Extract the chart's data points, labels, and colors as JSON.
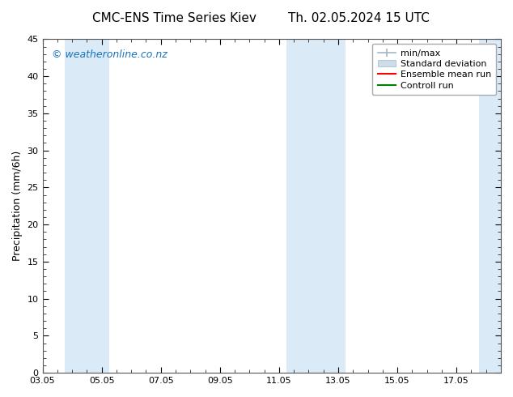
{
  "title_left": "CMC-ENS Time Series Kiev",
  "title_right": "Th. 02.05.2024 15 UTC",
  "ylabel": "Precipitation (mm/6h)",
  "ylim": [
    0,
    45
  ],
  "yticks": [
    0,
    5,
    10,
    15,
    20,
    25,
    30,
    35,
    40,
    45
  ],
  "xtick_labels": [
    "03.05",
    "05.05",
    "07.05",
    "09.05",
    "11.05",
    "13.05",
    "15.05",
    "17.05"
  ],
  "xtick_positions": [
    0,
    2,
    4,
    6,
    8,
    10,
    12,
    14
  ],
  "xlim": [
    0,
    15.5
  ],
  "shaded_bands": [
    {
      "x_start": 0.75,
      "x_end": 2.25
    },
    {
      "x_start": 8.25,
      "x_end": 10.25
    },
    {
      "x_start": 14.75,
      "x_end": 15.5
    }
  ],
  "band_color": "#daeaf7",
  "watermark": "© weatheronline.co.nz",
  "watermark_color": "#1a72b8",
  "watermark_fontsize": 9,
  "legend_labels": [
    "min/max",
    "Standard deviation",
    "Ensemble mean run",
    "Controll run"
  ],
  "legend_minmax_color": "#a0b8c8",
  "legend_std_color": "#ccdde8",
  "legend_ensemble_color": "red",
  "legend_control_color": "green",
  "bg_color": "#ffffff",
  "plot_bg_color": "#ffffff",
  "spine_color": "#555555",
  "tick_label_fontsize": 8,
  "axis_label_fontsize": 9,
  "title_fontsize": 11,
  "legend_fontsize": 8
}
